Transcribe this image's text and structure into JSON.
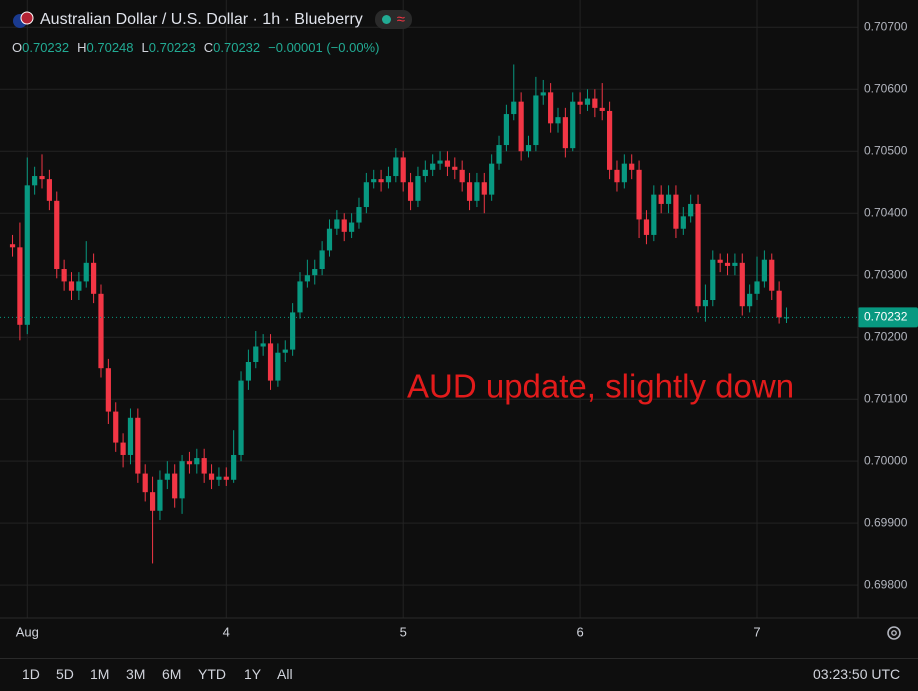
{
  "chart_data": {
    "type": "candlestick",
    "title": "Australian Dollar / U.S. Dollar · 1h · Blueberry",
    "legend": {
      "labels": [
        "O",
        "H",
        "L",
        "C"
      ],
      "values": [
        0.70232,
        0.70248,
        0.70223,
        0.70232
      ],
      "change": "−0.00001 (−0.00%)"
    },
    "annotation": "AUD update, slightly down",
    "up_color": "#089981",
    "down_color": "#f23645",
    "grid": true,
    "last_price": 0.70232,
    "xlim": [
      -30.7,
      85.7
    ],
    "ylim": [
      0.69747,
      0.70744
    ],
    "xticks": [
      {
        "value": -27,
        "label": "Aug"
      },
      {
        "value": 0,
        "label": "4"
      },
      {
        "value": 24,
        "label": "5"
      },
      {
        "value": 48,
        "label": "6"
      },
      {
        "value": 72,
        "label": "7"
      }
    ],
    "yticks": [
      {
        "value": 0.707,
        "label": "0.70700"
      },
      {
        "value": 0.706,
        "label": "0.70600"
      },
      {
        "value": 0.705,
        "label": "0.70500"
      },
      {
        "value": 0.704,
        "label": "0.70400"
      },
      {
        "value": 0.703,
        "label": "0.70300"
      },
      {
        "value": 0.702,
        "label": "0.70200"
      },
      {
        "value": 0.701,
        "label": "0.70100"
      },
      {
        "value": 0.7,
        "label": "0.70000"
      },
      {
        "value": 0.699,
        "label": "0.69900"
      },
      {
        "value": 0.698,
        "label": "0.69800"
      }
    ],
    "x": [
      -29,
      -28,
      -27,
      -26,
      -25,
      -24,
      -23,
      -22,
      -21,
      -20,
      -19,
      -18,
      -17,
      -16,
      -15,
      -14,
      -13,
      -12,
      -11,
      -10,
      -9,
      -8,
      -7,
      -6,
      -5,
      -4,
      -3,
      -2,
      -1,
      0,
      1,
      2,
      3,
      4,
      5,
      6,
      7,
      8,
      9,
      10,
      11,
      12,
      13,
      14,
      15,
      16,
      17,
      18,
      19,
      20,
      21,
      22,
      23,
      24,
      25,
      26,
      27,
      28,
      29,
      30,
      31,
      32,
      33,
      34,
      35,
      36,
      37,
      38,
      39,
      40,
      41,
      42,
      43,
      44,
      45,
      46,
      47,
      48,
      49,
      50,
      51,
      52,
      53,
      54,
      55,
      56,
      57,
      58,
      59,
      60,
      61,
      62,
      63,
      64,
      65,
      66,
      67,
      68,
      69,
      70,
      71,
      72,
      73,
      74,
      75,
      76
    ],
    "open": [
      0.7035,
      0.70345,
      0.7022,
      0.70445,
      0.7046,
      0.70455,
      0.7042,
      0.7031,
      0.7029,
      0.70275,
      0.7029,
      0.7032,
      0.7027,
      0.7015,
      0.7008,
      0.7003,
      0.7001,
      0.7007,
      0.6998,
      0.6995,
      0.6992,
      0.6997,
      0.6998,
      0.6994,
      0.7,
      0.69995,
      0.70005,
      0.6998,
      0.6997,
      0.69975,
      0.6997,
      0.7001,
      0.7013,
      0.7016,
      0.70185,
      0.7019,
      0.7013,
      0.70175,
      0.7018,
      0.7024,
      0.7029,
      0.703,
      0.7031,
      0.7034,
      0.70375,
      0.7039,
      0.7037,
      0.70385,
      0.7041,
      0.7045,
      0.70455,
      0.7045,
      0.7046,
      0.7049,
      0.7045,
      0.7042,
      0.7046,
      0.7047,
      0.7048,
      0.70485,
      0.70475,
      0.7047,
      0.7045,
      0.7042,
      0.7045,
      0.7043,
      0.7048,
      0.7051,
      0.7056,
      0.7058,
      0.705,
      0.7051,
      0.7059,
      0.70595,
      0.70545,
      0.70555,
      0.70505,
      0.7058,
      0.70575,
      0.70585,
      0.7057,
      0.70565,
      0.7047,
      0.7045,
      0.7048,
      0.7047,
      0.7039,
      0.70365,
      0.7043,
      0.70415,
      0.7043,
      0.70375,
      0.70395,
      0.70415,
      0.7025,
      0.7026,
      0.70325,
      0.7032,
      0.70315,
      0.7032,
      0.7025,
      0.7027,
      0.7029,
      0.70325,
      0.70275,
      0.70232
    ],
    "high": [
      0.70365,
      0.70385,
      0.7049,
      0.70475,
      0.70495,
      0.7047,
      0.70435,
      0.70325,
      0.70305,
      0.70305,
      0.70355,
      0.70335,
      0.70285,
      0.70165,
      0.70095,
      0.70045,
      0.70085,
      0.70085,
      0.69995,
      0.69975,
      0.69985,
      0.7,
      0.69995,
      0.7001,
      0.70015,
      0.7002,
      0.7002,
      0.69995,
      0.6999,
      0.6999,
      0.7005,
      0.70145,
      0.7018,
      0.7021,
      0.70205,
      0.70205,
      0.7019,
      0.70195,
      0.70255,
      0.70305,
      0.70325,
      0.70325,
      0.70355,
      0.7039,
      0.70405,
      0.704,
      0.704,
      0.70425,
      0.70465,
      0.7047,
      0.7047,
      0.70475,
      0.70505,
      0.705,
      0.70465,
      0.70475,
      0.70485,
      0.70495,
      0.705,
      0.705,
      0.7049,
      0.70485,
      0.70465,
      0.70465,
      0.70465,
      0.70495,
      0.70525,
      0.70575,
      0.7064,
      0.70595,
      0.70525,
      0.7062,
      0.70615,
      0.7061,
      0.7057,
      0.7057,
      0.70595,
      0.70595,
      0.706,
      0.706,
      0.7061,
      0.7058,
      0.70485,
      0.70495,
      0.70495,
      0.70485,
      0.70405,
      0.70445,
      0.70445,
      0.70445,
      0.70445,
      0.7041,
      0.7043,
      0.7043,
      0.70285,
      0.7034,
      0.70335,
      0.70335,
      0.70335,
      0.70335,
      0.70285,
      0.7033,
      0.7034,
      0.70335,
      0.7029,
      0.70248
    ],
    "low": [
      0.7033,
      0.70195,
      0.70205,
      0.7043,
      0.7044,
      0.70405,
      0.70295,
      0.70275,
      0.7026,
      0.7026,
      0.7028,
      0.70255,
      0.70135,
      0.7006,
      0.70015,
      0.6999,
      0.69995,
      0.69965,
      0.69935,
      0.69835,
      0.69905,
      0.69955,
      0.69925,
      0.69915,
      0.6998,
      0.6998,
      0.69965,
      0.69955,
      0.6996,
      0.6996,
      0.69965,
      0.7,
      0.70115,
      0.7015,
      0.7017,
      0.70115,
      0.7012,
      0.7016,
      0.7017,
      0.7023,
      0.7028,
      0.70285,
      0.703,
      0.7033,
      0.70365,
      0.70355,
      0.7036,
      0.70375,
      0.704,
      0.7044,
      0.70435,
      0.7044,
      0.7045,
      0.70435,
      0.70405,
      0.7041,
      0.7045,
      0.7046,
      0.7047,
      0.7046,
      0.70455,
      0.70435,
      0.70405,
      0.7041,
      0.704,
      0.7042,
      0.7047,
      0.705,
      0.7055,
      0.70485,
      0.7049,
      0.705,
      0.70575,
      0.7053,
      0.7053,
      0.7049,
      0.705,
      0.7056,
      0.70565,
      0.70555,
      0.7055,
      0.70455,
      0.70435,
      0.7044,
      0.70455,
      0.7036,
      0.7035,
      0.70355,
      0.704,
      0.704,
      0.7036,
      0.70365,
      0.70385,
      0.7024,
      0.70225,
      0.7025,
      0.70305,
      0.703,
      0.703,
      0.70235,
      0.7024,
      0.7026,
      0.7028,
      0.7026,
      0.70222,
      0.70223
    ],
    "close": [
      0.70345,
      0.7022,
      0.70445,
      0.7046,
      0.70455,
      0.7042,
      0.7031,
      0.7029,
      0.70275,
      0.7029,
      0.7032,
      0.7027,
      0.7015,
      0.7008,
      0.7003,
      0.7001,
      0.7007,
      0.6998,
      0.6995,
      0.6992,
      0.6997,
      0.6998,
      0.6994,
      0.7,
      0.69995,
      0.70005,
      0.6998,
      0.6997,
      0.69975,
      0.6997,
      0.7001,
      0.7013,
      0.7016,
      0.70185,
      0.7019,
      0.7013,
      0.70175,
      0.7018,
      0.7024,
      0.7029,
      0.703,
      0.7031,
      0.7034,
      0.70375,
      0.7039,
      0.7037,
      0.70385,
      0.7041,
      0.7045,
      0.70455,
      0.7045,
      0.7046,
      0.7049,
      0.7045,
      0.7042,
      0.7046,
      0.7047,
      0.7048,
      0.70485,
      0.70475,
      0.7047,
      0.7045,
      0.7042,
      0.7045,
      0.7043,
      0.7048,
      0.7051,
      0.7056,
      0.7058,
      0.705,
      0.7051,
      0.7059,
      0.70595,
      0.70545,
      0.70555,
      0.70505,
      0.7058,
      0.70575,
      0.70585,
      0.7057,
      0.70565,
      0.7047,
      0.7045,
      0.7048,
      0.7047,
      0.7039,
      0.70365,
      0.7043,
      0.70415,
      0.7043,
      0.70375,
      0.70395,
      0.70415,
      0.7025,
      0.7026,
      0.70325,
      0.7032,
      0.70315,
      0.7032,
      0.7025,
      0.7027,
      0.7029,
      0.70325,
      0.70275,
      0.70232,
      0.70232
    ]
  },
  "toolbar": {
    "ranges": [
      "1D",
      "5D",
      "1M",
      "3M",
      "6M",
      "YTD",
      "1Y",
      "All"
    ],
    "clock": "03:23:50 UTC"
  }
}
